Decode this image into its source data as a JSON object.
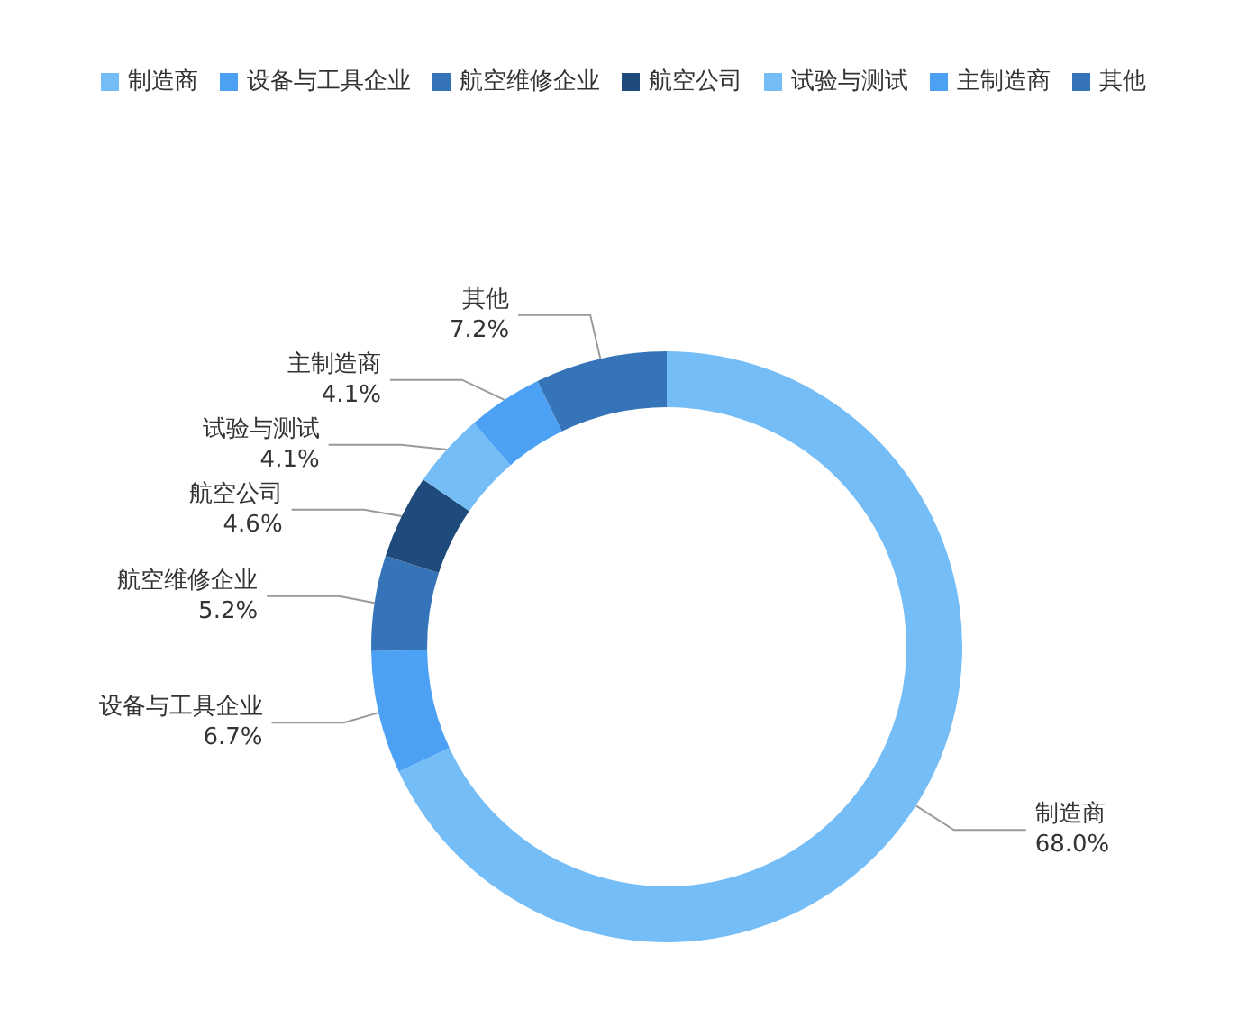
{
  "chart_data": {
    "type": "donut",
    "categories": [
      "制造商",
      "设备与工具企业",
      "航空维修企业",
      "航空公司",
      "试验与测试",
      "主制造商",
      "其他"
    ],
    "values": [
      68.0,
      6.7,
      5.2,
      4.6,
      4.1,
      4.1,
      7.2
    ],
    "value_labels": [
      "68.0%",
      "6.7%",
      "5.2%",
      "4.6%",
      "4.1%",
      "4.1%",
      "7.2%"
    ],
    "colors": [
      "#74bdf7",
      "#4ca1f5",
      "#3574b8",
      "#1f4a7c",
      "#74bdf7",
      "#4ca1f5",
      "#3574b8"
    ],
    "legend": "top"
  }
}
